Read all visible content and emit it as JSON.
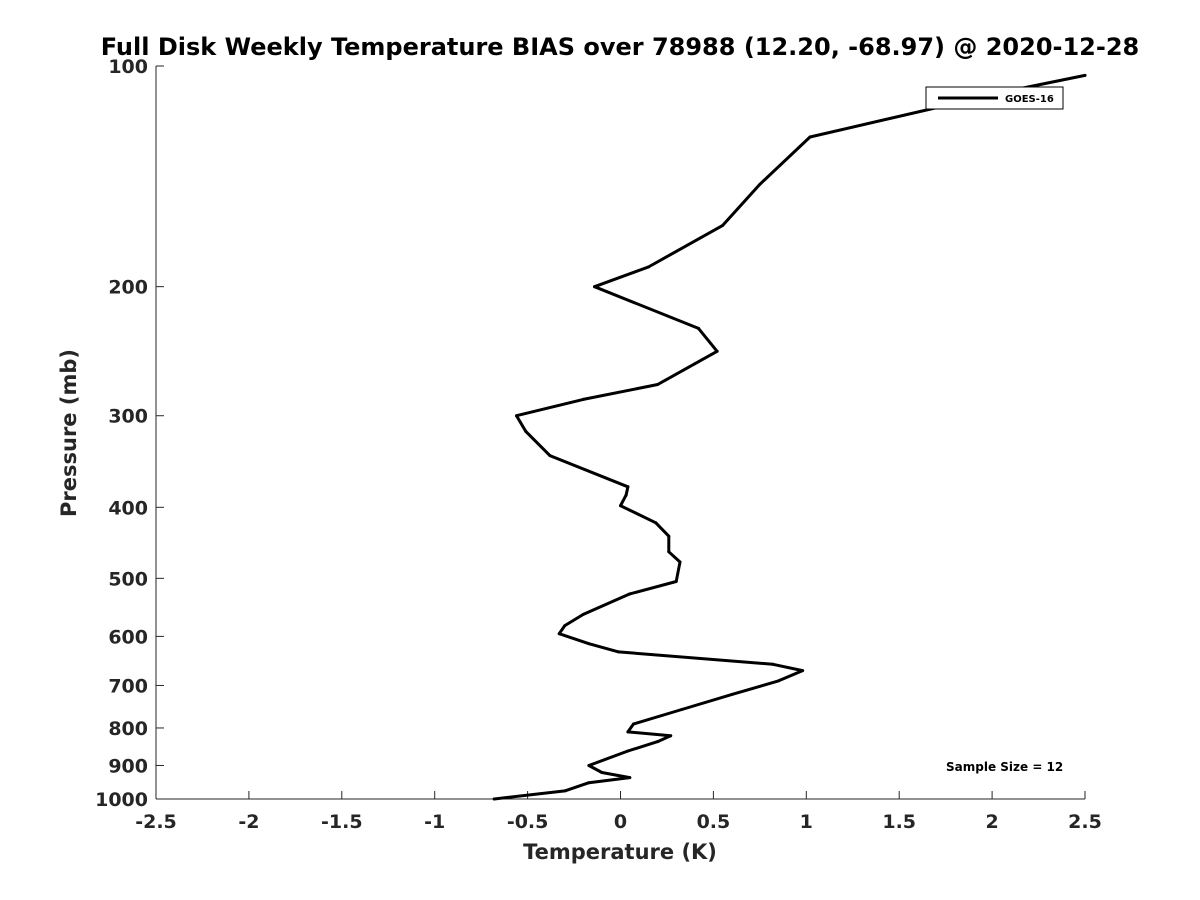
{
  "chart_data": {
    "type": "line",
    "title": "Full Disk Weekly Temperature BIAS over 78988 (12.20, -68.97) @ 2020-12-28",
    "xlabel": "Temperature (K)",
    "ylabel": "Pressure (mb)",
    "xlim": [
      -2.5,
      2.5
    ],
    "ylim": [
      100,
      1000
    ],
    "y_scale": "log",
    "y_reversed": true,
    "grid": false,
    "legend_position": "top-right",
    "x_ticks": [
      "-2.5",
      "-2",
      "-1.5",
      "-1",
      "-0.5",
      "0",
      "0.5",
      "1",
      "1.5",
      "2",
      "2.5"
    ],
    "y_ticks": [
      "100",
      "200",
      "300",
      "400",
      "500",
      "600",
      "700",
      "800",
      "900",
      "1000"
    ],
    "annotation": "Sample Size = 12",
    "series": [
      {
        "name": "GOES-16",
        "color": "#000000",
        "x": [
          2.5,
          2.1,
          1.02,
          0.75,
          0.55,
          0.15,
          -0.14,
          0.42,
          0.52,
          0.2,
          -0.2,
          -0.56,
          -0.51,
          -0.38,
          0.04,
          0.03,
          0.0,
          0.19,
          0.26,
          0.26,
          0.32,
          0.3,
          0.05,
          -0.2,
          -0.3,
          -0.33,
          -0.17,
          -0.01,
          0.82,
          0.98,
          0.85,
          0.6,
          0.33,
          0.07,
          0.04,
          0.27,
          0.2,
          0.04,
          -0.17,
          -0.1,
          0.05,
          -0.17,
          -0.3,
          -0.68
        ],
        "y": [
          103,
          108,
          125,
          145,
          165,
          188,
          200,
          228,
          245,
          272,
          285,
          300,
          315,
          340,
          375,
          385,
          398,
          420,
          438,
          460,
          475,
          505,
          525,
          560,
          580,
          595,
          614,
          630,
          655,
          668,
          690,
          720,
          755,
          790,
          810,
          820,
          835,
          860,
          900,
          920,
          935,
          950,
          975,
          1000
        ]
      }
    ]
  }
}
